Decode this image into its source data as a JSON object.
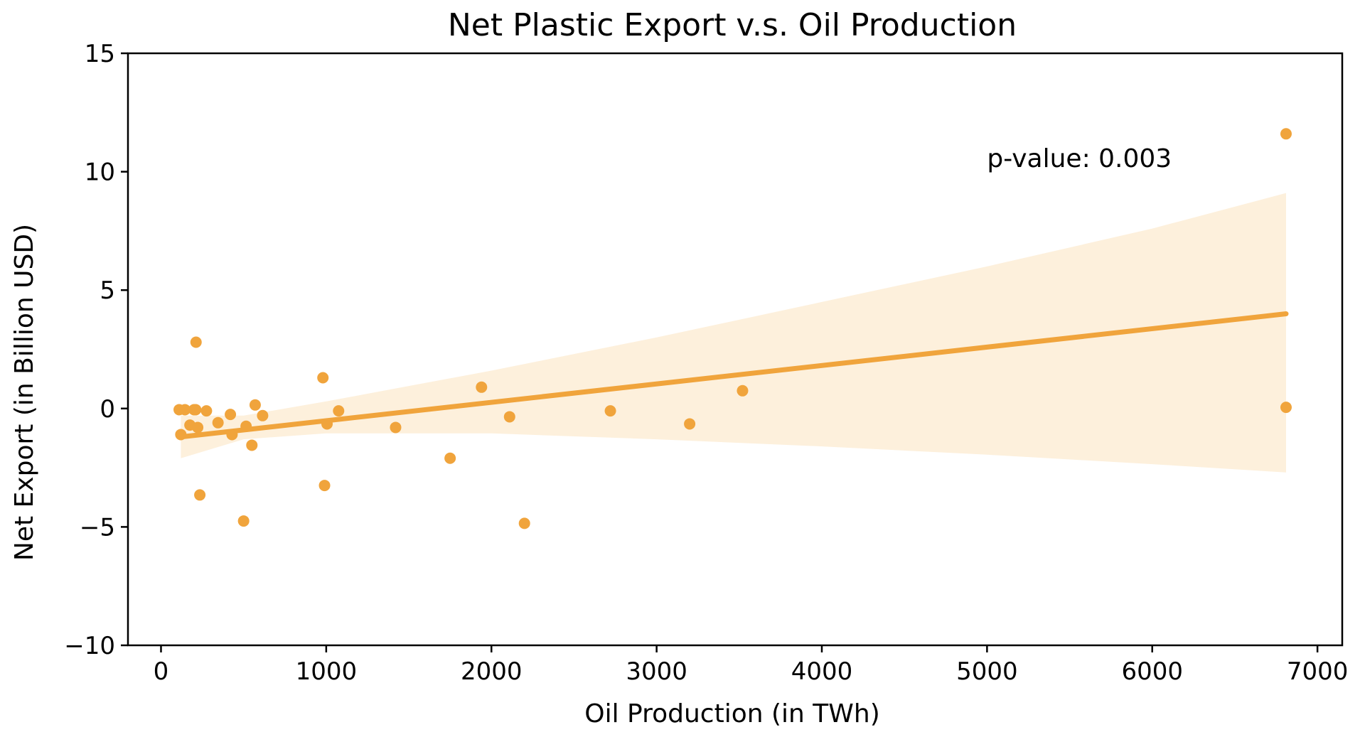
{
  "chart_data": {
    "type": "scatter",
    "title": "Net Plastic Export v.s. Oil Production",
    "xlabel": "Oil Production (in TWh)",
    "ylabel": "Net Export (in Billion USD)",
    "xlim": [
      -200,
      7150
    ],
    "ylim": [
      -10,
      15
    ],
    "xticks": [
      0,
      1000,
      2000,
      3000,
      4000,
      5000,
      6000,
      7000
    ],
    "xtick_labels": [
      "0",
      "1000",
      "2000",
      "3000",
      "4000",
      "5000",
      "6000",
      "7000"
    ],
    "yticks": [
      -10,
      -5,
      0,
      5,
      10,
      15
    ],
    "ytick_labels": [
      "−10",
      "−5",
      "0",
      "5",
      "10",
      "15"
    ],
    "grid": false,
    "color": "#f0a43c",
    "ci_color": "#fdf0dc",
    "annotation": {
      "text": "p-value: 0.003",
      "x": 5000,
      "y": 10.2
    },
    "regression": {
      "x_start": 120,
      "y_start": -1.2,
      "x_end": 6810,
      "y_end": 4.0
    },
    "confidence_band": {
      "x": [
        120,
        500,
        1000,
        2000,
        3000,
        4000,
        5000,
        6000,
        6810
      ],
      "upper": [
        -0.3,
        -0.3,
        0.3,
        1.6,
        3.0,
        4.5,
        6.0,
        7.6,
        9.1
      ],
      "lower": [
        -2.1,
        -1.3,
        -1.05,
        -1.05,
        -1.3,
        -1.6,
        -1.95,
        -2.35,
        -2.7
      ]
    },
    "points": [
      {
        "x": 110,
        "y": -0.05
      },
      {
        "x": 120,
        "y": -1.1
      },
      {
        "x": 145,
        "y": -0.05
      },
      {
        "x": 175,
        "y": -0.7
      },
      {
        "x": 200,
        "y": -0.05
      },
      {
        "x": 210,
        "y": -0.05
      },
      {
        "x": 212,
        "y": 2.8
      },
      {
        "x": 222,
        "y": -0.8
      },
      {
        "x": 235,
        "y": -3.65
      },
      {
        "x": 275,
        "y": -0.1
      },
      {
        "x": 345,
        "y": -0.6
      },
      {
        "x": 420,
        "y": -0.25
      },
      {
        "x": 430,
        "y": -1.1
      },
      {
        "x": 500,
        "y": -4.75
      },
      {
        "x": 515,
        "y": -0.75
      },
      {
        "x": 550,
        "y": -1.55
      },
      {
        "x": 570,
        "y": 0.15
      },
      {
        "x": 615,
        "y": -0.3
      },
      {
        "x": 980,
        "y": 1.3
      },
      {
        "x": 990,
        "y": -3.25
      },
      {
        "x": 1005,
        "y": -0.65
      },
      {
        "x": 1075,
        "y": -0.1
      },
      {
        "x": 1420,
        "y": -0.8
      },
      {
        "x": 1750,
        "y": -2.1
      },
      {
        "x": 1940,
        "y": 0.9
      },
      {
        "x": 2110,
        "y": -0.35
      },
      {
        "x": 2200,
        "y": -4.85
      },
      {
        "x": 2720,
        "y": -0.1
      },
      {
        "x": 3200,
        "y": -0.65
      },
      {
        "x": 3520,
        "y": 0.75
      },
      {
        "x": 6810,
        "y": 11.6
      },
      {
        "x": 6810,
        "y": 0.05
      }
    ]
  }
}
